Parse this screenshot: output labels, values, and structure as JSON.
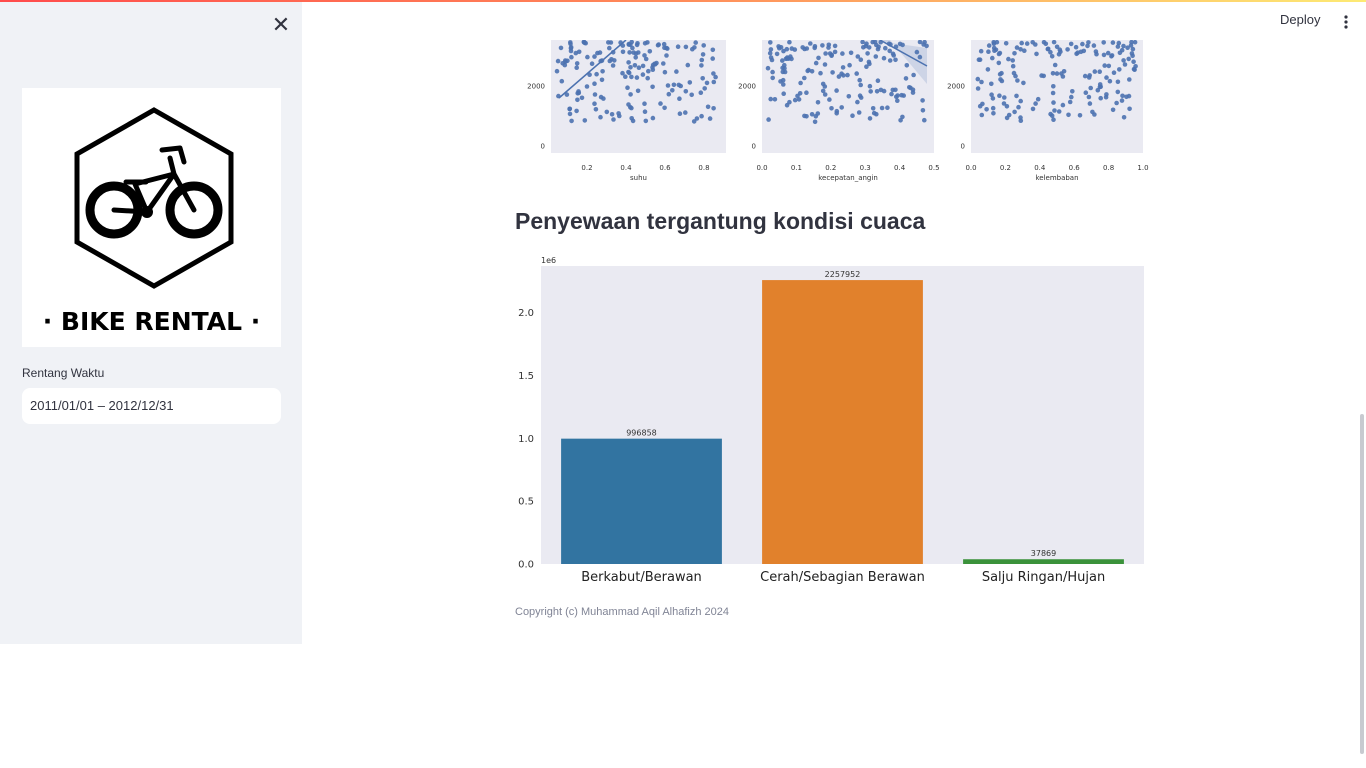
{
  "header": {
    "deploy_label": "Deploy",
    "menu_icon": "kebab-vertical-icon"
  },
  "sidebar": {
    "close_icon": "close-icon",
    "close_glyph": "✕",
    "logo_text": "· BIKE RENTAL ·",
    "date_range": {
      "label": "Rentang Waktu",
      "value": "2011/01/01 – 2012/12/31"
    }
  },
  "scatter_charts": [
    {
      "xlabel": "suhu",
      "xticks": [
        "0.2",
        "0.4",
        "0.6",
        "0.8"
      ],
      "yticks": [
        "0",
        "2000"
      ]
    },
    {
      "xlabel": "kecepatan_angin",
      "xticks": [
        "0.0",
        "0.1",
        "0.2",
        "0.3",
        "0.4",
        "0.5"
      ],
      "yticks": [
        "0",
        "2000"
      ]
    },
    {
      "xlabel": "kelembaban",
      "xticks": [
        "0.0",
        "0.2",
        "0.4",
        "0.6",
        "0.8",
        "1.0"
      ],
      "yticks": [
        "0",
        "2000"
      ]
    }
  ],
  "section_title": "Penyewaan tergantung kondisi cuaca",
  "chart_data": {
    "type": "bar",
    "title": "",
    "xlabel": "",
    "ylabel": "",
    "scale_label": "1e6",
    "categories": [
      "Berkabut/Berawan",
      "Cerah/Sebagian Berawan",
      "Salju Ringan/Hujan"
    ],
    "values": [
      996858,
      2257952,
      37869
    ],
    "data_labels": [
      "996858",
      "2257952",
      "37869"
    ],
    "colors": [
      "#3274a1",
      "#e1812c",
      "#3a923a"
    ],
    "yticks": [
      0,
      500000,
      1000000,
      1500000,
      2000000
    ],
    "ytick_labels": [
      "0.0",
      "0.5",
      "1.0",
      "1.5",
      "2.0"
    ],
    "ylim": [
      0,
      2370000
    ],
    "grid": false,
    "background": "#eaeaf2"
  },
  "footer": "Copyright (c) Muhammad Aqil Alhafizh 2024"
}
